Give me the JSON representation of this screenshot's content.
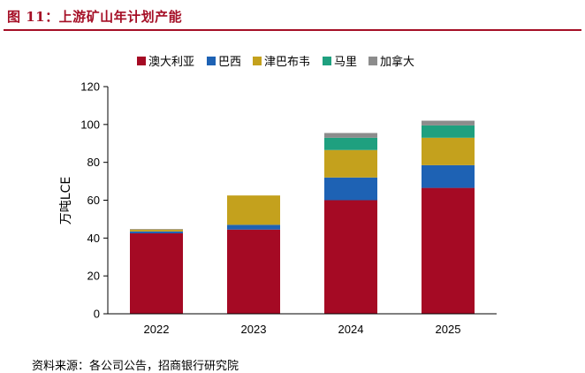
{
  "figure": {
    "title": "图 11：上游矿山年计划产能",
    "source": "资料来源：各公司公告，招商银行研究院"
  },
  "chart_data": {
    "type": "bar",
    "stacked": true,
    "categories": [
      "2022",
      "2023",
      "2024",
      "2025"
    ],
    "series": [
      {
        "name": "澳大利亚",
        "color": "#a50a24",
        "values": [
          42.5,
          44.5,
          60.0,
          66.5
        ]
      },
      {
        "name": "巴西",
        "color": "#1e62b4",
        "values": [
          1.0,
          2.5,
          12.0,
          12.0
        ]
      },
      {
        "name": "津巴布韦",
        "color": "#c4a11d",
        "values": [
          1.0,
          15.5,
          14.5,
          14.5
        ]
      },
      {
        "name": "马里",
        "color": "#1fa07f",
        "values": [
          0.0,
          0.0,
          6.5,
          6.5
        ]
      },
      {
        "name": "加拿大",
        "color": "#8c8c8c",
        "values": [
          0.3,
          0.0,
          2.5,
          2.5
        ]
      }
    ],
    "ylabel": "万吨LCE",
    "ylim": [
      0,
      120
    ],
    "yticks": [
      0,
      20,
      40,
      60,
      80,
      100,
      120
    ],
    "grid": false,
    "legend_position": "top"
  }
}
